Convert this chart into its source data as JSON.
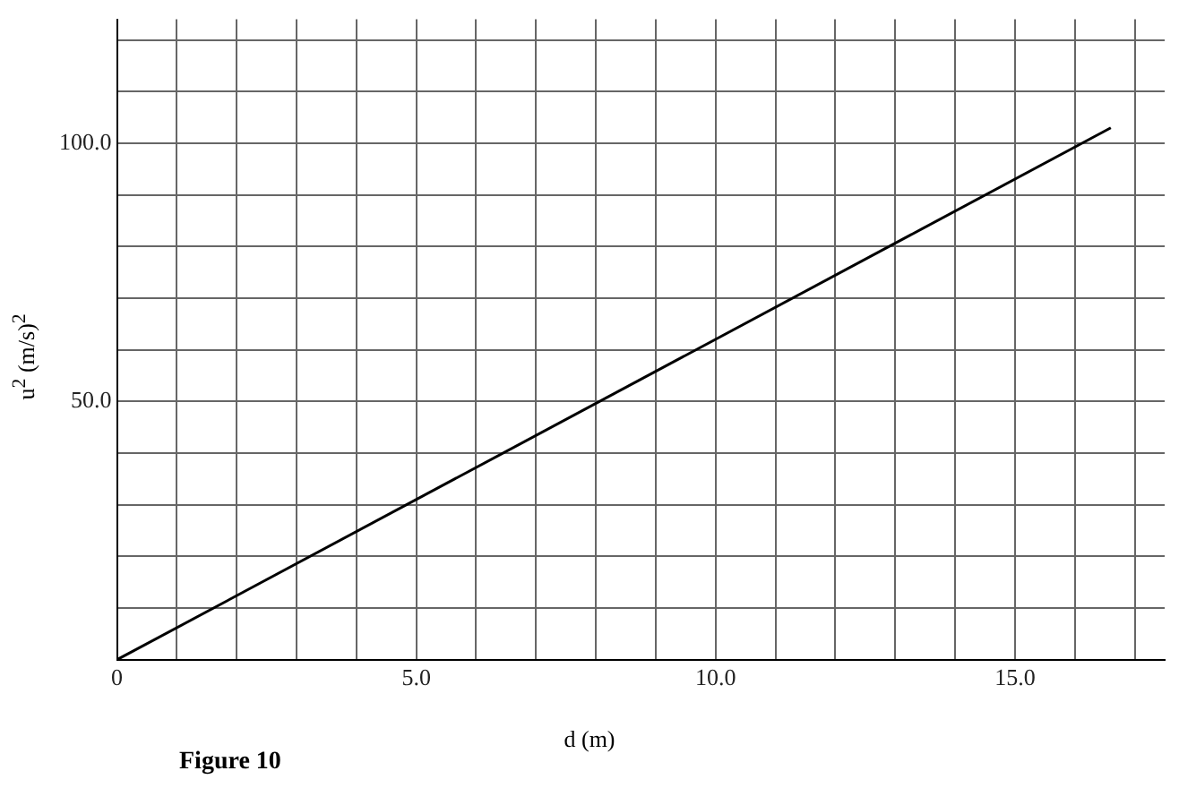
{
  "chart_data": {
    "type": "line",
    "xlabel": "d (m)",
    "ylabel": "u$^{2}$ (m/s)$^{2}$",
    "annotations": [
      "Figure 10"
    ],
    "series": [
      {
        "color": "#000000",
        "x": [
          0,
          16.6
        ],
        "values": [
          0,
          103
        ]
      }
    ],
    "xlim": [
      0,
      17.5
    ],
    "ylim": [
      0,
      124
    ],
    "xticks": [
      0,
      {
        "value": 1,
        "label": null
      },
      {
        "value": 2,
        "label": null
      },
      {
        "value": 3,
        "label": null
      },
      {
        "value": 4,
        "label": null
      },
      {
        "value": 5,
        "label": "5.0"
      },
      {
        "value": 6,
        "label": null
      },
      {
        "value": 7,
        "label": null
      },
      {
        "value": 8,
        "label": null
      },
      {
        "value": 9,
        "label": null
      },
      {
        "value": 10,
        "label": "10.0"
      },
      {
        "value": 11,
        "label": null
      },
      {
        "value": 12,
        "label": null
      },
      {
        "value": 13,
        "label": null
      },
      {
        "value": 14,
        "label": null
      },
      {
        "value": 15,
        "label": "15.0"
      },
      {
        "value": 16,
        "label": null
      },
      {
        "value": 17,
        "label": null
      }
    ],
    "yticks": [
      {
        "value": 0,
        "label": null
      },
      {
        "value": 10,
        "label": null
      },
      {
        "value": 20,
        "label": null
      },
      {
        "value": 30,
        "label": null
      },
      {
        "value": 40,
        "label": null
      },
      {
        "value": 50,
        "label": "50.0"
      },
      {
        "value": 60,
        "label": null
      },
      {
        "value": 70,
        "label": null
      },
      {
        "value": 80,
        "label": null
      },
      {
        "value": 90,
        "label": null
      },
      {
        "value": 100,
        "label": "100.0"
      },
      {
        "value": 110,
        "label": null
      },
      {
        "value": 120,
        "label": null
      }
    ],
    "grid": true,
    "legend": false,
    "marker": "none",
    "line_style": "solid"
  }
}
